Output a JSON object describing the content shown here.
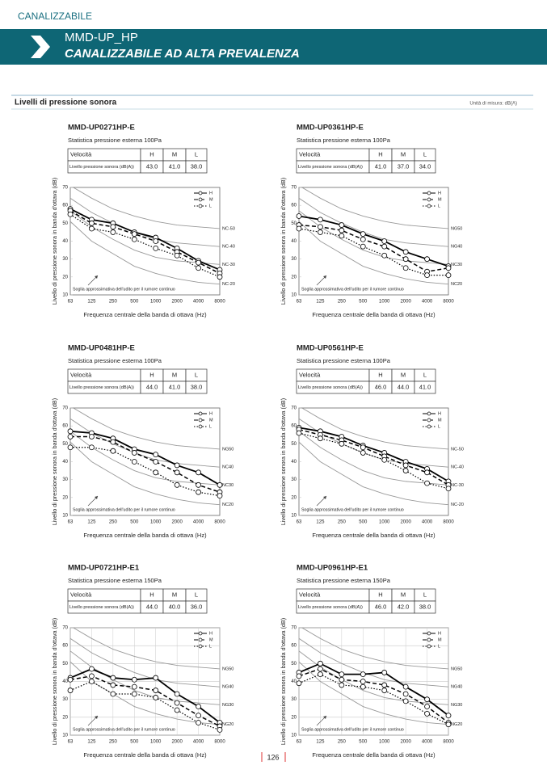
{
  "header": {
    "section": "CANALIZZABILE",
    "model": "MMD-UP_HP",
    "title": "CANALIZZABILE AD ALTA PREVALENZA"
  },
  "section": {
    "title": "Livelli di pressione sonora",
    "unit": "Unità di misura: dB(A)"
  },
  "page_number": "126",
  "panels": [
    {
      "model": "MMD-UP0271HP-E",
      "pressure": "Statistica pressione esterna 100Pa",
      "table": {
        "header": [
          "Velocità",
          "H",
          "M",
          "L"
        ],
        "row_label": "Livello pressione sonora (dB(A))",
        "values": [
          "43.0",
          "41.0",
          "38.0"
        ]
      }
    },
    {
      "model": "MMD-UP0361HP-E",
      "pressure": "Statistica pressione esterna 100Pa",
      "table": {
        "header": [
          "Velocità",
          "H",
          "M",
          "L"
        ],
        "row_label": "Livello pressione sonora (dB(A))",
        "values": [
          "41.0",
          "37.0",
          "34.0"
        ]
      }
    },
    {
      "model": "MMD-UP0481HP-E",
      "pressure": "Statistica pressione esterna 100Pa",
      "table": {
        "header": [
          "Velocità",
          "H",
          "M",
          "L"
        ],
        "row_label": "Livello pressione sonora (dB(A))",
        "values": [
          "44.0",
          "41.0",
          "38.0"
        ]
      }
    },
    {
      "model": "MMD-UP0561HP-E",
      "pressure": "Statistica pressione esterna 100Pa",
      "table": {
        "header": [
          "Velocità",
          "H",
          "M",
          "L"
        ],
        "row_label": "Livello pressione sonora (dB(A))",
        "values": [
          "46.0",
          "44.0",
          "41.0"
        ]
      }
    },
    {
      "model": "MMD-UP0721HP-E1",
      "pressure": "Statistica pressione esterna 150Pa",
      "table": {
        "header": [
          "Velocità",
          "H",
          "M",
          "L"
        ],
        "row_label": "Livello pressione sonora (dB(A))",
        "values": [
          "44.0",
          "40.0",
          "36.0"
        ]
      }
    },
    {
      "model": "MMD-UP0961HP-E1",
      "pressure": "Statistica pressione esterna 150Pa",
      "table": {
        "header": [
          "Velocità",
          "H",
          "M",
          "L"
        ],
        "row_label": "Livello pressione sonora (dB(A))",
        "values": [
          "46.0",
          "42.0",
          "38.0"
        ]
      }
    }
  ],
  "chart_data": [
    {
      "type": "line",
      "x_label": "Frequenza centrale della banda di ottava (Hz)",
      "y_label": "Livello di pressione sonora in banda d'ottava (dB)",
      "note": "Soglia approssimativa dell'udito per il rumore continuo",
      "grid": false,
      "categories": [
        "63",
        "125",
        "250",
        "500",
        "1000",
        "2000",
        "4000",
        "8000"
      ],
      "ylim": [
        10,
        70
      ],
      "yticks": [
        10,
        20,
        30,
        40,
        50,
        60,
        70
      ],
      "series": [
        {
          "name": "H",
          "color": "#000000",
          "style": "solid",
          "values": [
            58,
            52,
            50,
            45,
            42,
            36,
            29,
            24
          ]
        },
        {
          "name": "M",
          "color": "#000000",
          "style": "dashed",
          "values": [
            57,
            50,
            48,
            44,
            40,
            34,
            28,
            22
          ]
        },
        {
          "name": "L",
          "color": "#000000",
          "style": "dotted",
          "values": [
            55,
            47,
            45,
            41,
            36,
            32,
            25,
            20
          ]
        }
      ],
      "nc_curves": [
        {
          "label": "NC-50",
          "values": [
            71,
            64,
            58,
            54,
            51,
            49,
            48,
            47
          ]
        },
        {
          "label": "NC-40",
          "values": [
            64,
            56,
            50,
            45,
            41,
            39,
            38,
            37
          ]
        },
        {
          "label": "NC-30",
          "values": [
            57,
            48,
            41,
            35,
            31,
            29,
            28,
            27
          ]
        },
        {
          "label": "NC-20",
          "values": [
            51,
            40,
            33,
            26,
            22,
            19,
            17,
            16
          ]
        }
      ]
    },
    {
      "type": "line",
      "x_label": "Frequenza centrale della banda di ottava (Hz)",
      "y_label": "Livello di pressione sonora in banda d'ottava (dB)",
      "note": "Soglia approssimativa dell'udito per il rumore continuo",
      "grid": false,
      "categories": [
        "63",
        "125",
        "250",
        "500",
        "1000",
        "2000",
        "4000",
        "8000"
      ],
      "ylim": [
        10,
        70
      ],
      "yticks": [
        10,
        20,
        30,
        40,
        50,
        60,
        70
      ],
      "series": [
        {
          "name": "H",
          "color": "#000000",
          "style": "solid",
          "values": [
            54,
            52,
            49,
            44,
            40,
            34,
            30,
            26
          ]
        },
        {
          "name": "M",
          "color": "#000000",
          "style": "dashed",
          "values": [
            49,
            48,
            46,
            41,
            37,
            30,
            23,
            25
          ]
        },
        {
          "name": "L",
          "color": "#000000",
          "style": "dotted",
          "values": [
            47,
            45,
            43,
            37,
            32,
            25,
            21,
            21
          ]
        }
      ],
      "nc_curves": [
        {
          "label": "NG50",
          "values": [
            71,
            64,
            58,
            54,
            51,
            49,
            48,
            47
          ]
        },
        {
          "label": "NG40",
          "values": [
            64,
            56,
            50,
            45,
            41,
            39,
            38,
            37
          ]
        },
        {
          "label": "NC30",
          "values": [
            57,
            48,
            41,
            35,
            31,
            29,
            28,
            27
          ]
        },
        {
          "label": "NC20",
          "values": [
            51,
            40,
            33,
            26,
            22,
            19,
            17,
            16
          ]
        }
      ]
    },
    {
      "type": "line",
      "x_label": "Frequenza centrale della banda di ottava (Hz)",
      "y_label": "Livello di pressione sonora in banda d'ottava (dB)",
      "note": "Soglia approssimativa dell'udito per il rumore continuo",
      "grid": false,
      "categories": [
        "63",
        "125",
        "250",
        "500",
        "1000",
        "2000",
        "4000",
        "8000"
      ],
      "ylim": [
        10,
        70
      ],
      "yticks": [
        10,
        20,
        30,
        40,
        50,
        60,
        70
      ],
      "series": [
        {
          "name": "H",
          "color": "#000000",
          "style": "solid",
          "values": [
            57,
            56,
            53,
            47,
            44,
            38,
            34,
            27
          ]
        },
        {
          "name": "M",
          "color": "#000000",
          "style": "dashed",
          "values": [
            54,
            54,
            51,
            45,
            40,
            34,
            27,
            23
          ]
        },
        {
          "name": "L",
          "color": "#000000",
          "style": "dotted",
          "values": [
            48,
            48,
            46,
            40,
            34,
            27,
            23,
            21
          ]
        }
      ],
      "nc_curves": [
        {
          "label": "NG50",
          "values": [
            71,
            64,
            58,
            54,
            51,
            49,
            48,
            47
          ]
        },
        {
          "label": "NC40",
          "values": [
            64,
            56,
            50,
            45,
            41,
            39,
            38,
            37
          ]
        },
        {
          "label": "NC30",
          "values": [
            57,
            48,
            41,
            35,
            31,
            29,
            28,
            27
          ]
        },
        {
          "label": "NC20",
          "values": [
            51,
            40,
            33,
            26,
            22,
            19,
            17,
            16
          ]
        }
      ]
    },
    {
      "type": "line",
      "x_label": "Frequenza centrale della banda di ottava (Hz)",
      "y_label": "Livello di pressione sonora in banda d'ottava (dB)",
      "note": "Soglia approssimativa dell'udito per il rumore continuo",
      "grid": false,
      "categories": [
        "63",
        "125",
        "250",
        "500",
        "1000",
        "2000",
        "4000",
        "8000"
      ],
      "ylim": [
        10,
        70
      ],
      "yticks": [
        10,
        20,
        30,
        40,
        50,
        60,
        70
      ],
      "series": [
        {
          "name": "H",
          "color": "#000000",
          "style": "solid",
          "values": [
            59,
            57,
            54,
            49,
            45,
            40,
            36,
            29
          ]
        },
        {
          "name": "M",
          "color": "#000000",
          "style": "dashed",
          "values": [
            58,
            55,
            52,
            48,
            43,
            38,
            34,
            27
          ]
        },
        {
          "name": "L",
          "color": "#000000",
          "style": "dotted",
          "values": [
            56,
            53,
            50,
            45,
            41,
            35,
            28,
            25
          ]
        }
      ],
      "nc_curves": [
        {
          "label": "NC-50",
          "values": [
            71,
            64,
            58,
            54,
            51,
            49,
            48,
            47
          ]
        },
        {
          "label": "NC-40",
          "values": [
            64,
            56,
            50,
            45,
            41,
            39,
            38,
            37
          ]
        },
        {
          "label": "NC-30",
          "values": [
            57,
            48,
            41,
            35,
            31,
            29,
            28,
            27
          ]
        },
        {
          "label": "NC-20",
          "values": [
            51,
            40,
            33,
            26,
            22,
            19,
            17,
            16
          ]
        }
      ]
    },
    {
      "type": "line",
      "x_label": "Frequenza centrale della banda di ottava (Hz)",
      "y_label": "Livello di pressione sonora in banda d'ottava (dB)",
      "note": "Soglia approssimativa dell'udito per il rumore continuo",
      "grid": true,
      "categories": [
        "63",
        "125",
        "250",
        "500",
        "1000",
        "2000",
        "4000",
        "8000"
      ],
      "ylim": [
        10,
        70
      ],
      "yticks": [
        10,
        20,
        30,
        40,
        50,
        60,
        70
      ],
      "series": [
        {
          "name": "H",
          "color": "#000000",
          "style": "solid",
          "values": [
            42,
            47,
            42,
            41,
            42,
            33,
            26,
            17
          ]
        },
        {
          "name": "M",
          "color": "#000000",
          "style": "dashed",
          "values": [
            41,
            43,
            38,
            37,
            35,
            28,
            21,
            15
          ]
        },
        {
          "name": "L",
          "color": "#000000",
          "style": "dotted",
          "values": [
            35,
            40,
            33,
            33,
            31,
            24,
            17,
            13
          ]
        }
      ],
      "nc_curves": [
        {
          "label": "NG50",
          "values": [
            71,
            64,
            58,
            54,
            51,
            49,
            48,
            47
          ]
        },
        {
          "label": "NG40",
          "values": [
            64,
            56,
            50,
            45,
            41,
            39,
            38,
            37
          ]
        },
        {
          "label": "NG30",
          "values": [
            57,
            48,
            41,
            35,
            31,
            29,
            28,
            27
          ]
        },
        {
          "label": "NG20",
          "values": [
            51,
            40,
            33,
            26,
            22,
            19,
            17,
            16
          ]
        }
      ]
    },
    {
      "type": "line",
      "x_label": "Frequenza centrale della banda di ottava (Hz)",
      "y_label": "Livello di pressione sonora in banda d'ottava (dB)",
      "note": "Soglia approssimativa dell'udito per il rumore continuo",
      "grid": true,
      "categories": [
        "63",
        "125",
        "250",
        "500",
        "1000",
        "2000",
        "4000",
        "8000"
      ],
      "ylim": [
        10,
        70
      ],
      "yticks": [
        10,
        20,
        30,
        40,
        50,
        60,
        70
      ],
      "series": [
        {
          "name": "H",
          "color": "#000000",
          "style": "solid",
          "values": [
            45,
            50,
            44,
            44,
            45,
            37,
            30,
            21
          ]
        },
        {
          "name": "M",
          "color": "#000000",
          "style": "dashed",
          "values": [
            43,
            47,
            41,
            40,
            38,
            33,
            26,
            17
          ]
        },
        {
          "name": "L",
          "color": "#000000",
          "style": "dotted",
          "values": [
            39,
            44,
            38,
            37,
            35,
            29,
            22,
            16
          ]
        }
      ],
      "nc_curves": [
        {
          "label": "NG50",
          "values": [
            71,
            64,
            58,
            54,
            51,
            49,
            48,
            47
          ]
        },
        {
          "label": "NG40",
          "values": [
            64,
            56,
            50,
            45,
            41,
            39,
            38,
            37
          ]
        },
        {
          "label": "NG30",
          "values": [
            57,
            48,
            41,
            35,
            31,
            29,
            28,
            27
          ]
        },
        {
          "label": "NG20",
          "values": [
            51,
            40,
            33,
            26,
            22,
            19,
            17,
            16
          ]
        }
      ]
    }
  ]
}
